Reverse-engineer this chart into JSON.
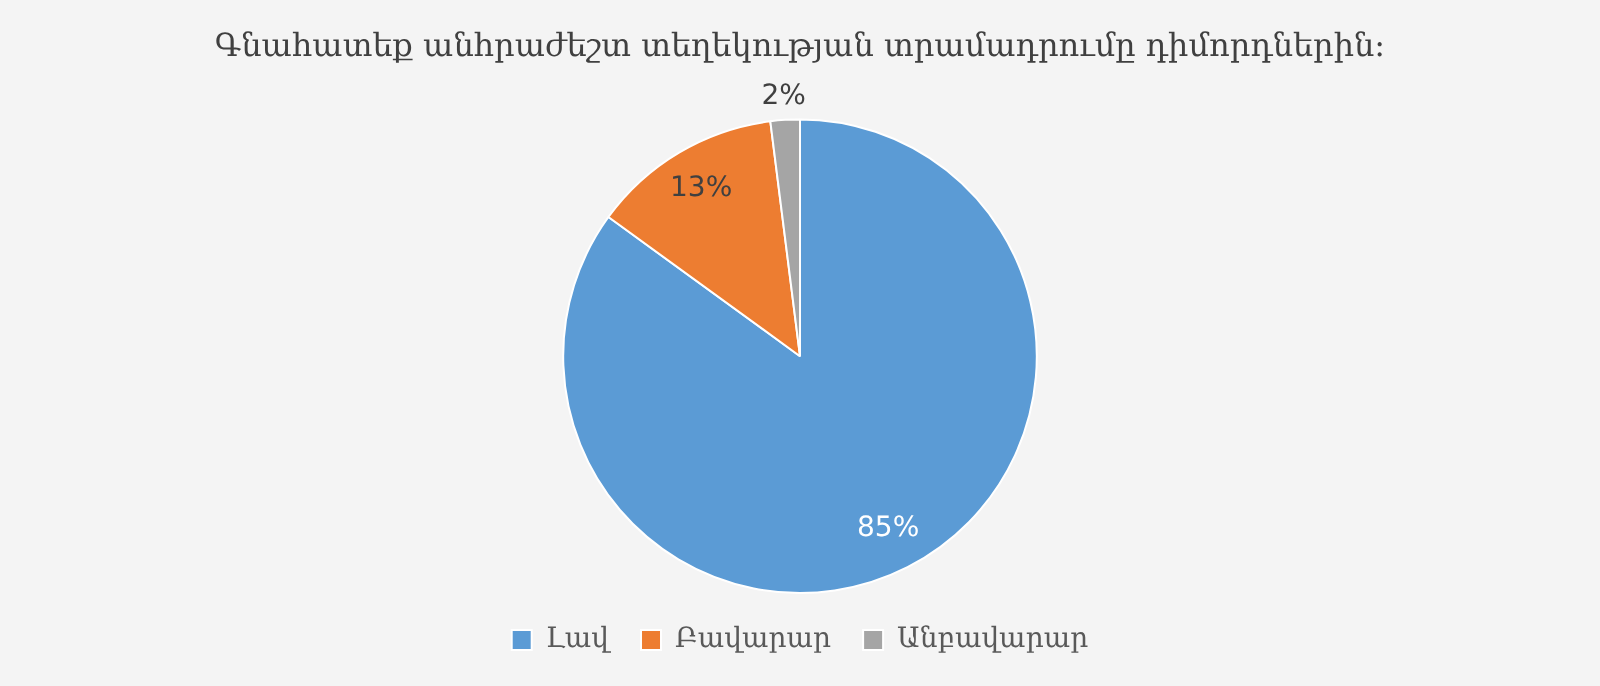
{
  "chart_data": {
    "type": "pie",
    "title": "Գնահատեք անհրաժեշտ տեղեկության տրամադրումը դիմորդներին:",
    "categories": [
      "Լավ",
      "Բավարար",
      "Անբավարար"
    ],
    "values": [
      85,
      13,
      2
    ],
    "colors": [
      "#5b9bd5",
      "#ed7d31",
      "#a5a5a5"
    ],
    "value_labels": [
      "85%",
      "13%",
      "2%"
    ],
    "legend": "bottom"
  }
}
